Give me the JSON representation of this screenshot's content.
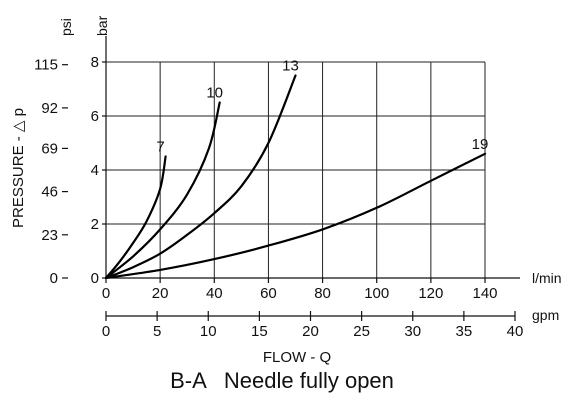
{
  "chart_data": {
    "type": "line",
    "caption": "B-A   Needle fully open",
    "xlabel": "FLOW - Q",
    "ylabel": "PRESSURE - △ p",
    "x_unit": "l/min",
    "x2_unit": "gpm",
    "y_unit": "bar",
    "y2_unit": "psi",
    "xlim": [
      0,
      140
    ],
    "ylim": [
      0,
      8
    ],
    "x_ticks": [
      0,
      20,
      40,
      60,
      80,
      100,
      120,
      140
    ],
    "y_ticks": [
      0,
      2,
      4,
      6,
      8
    ],
    "x2_ticks": [
      0,
      5,
      10,
      15,
      20,
      25,
      30,
      35,
      40
    ],
    "x2_lim": [
      0,
      40
    ],
    "y2_ticks": [
      {
        "label": "0",
        "bar": 0
      },
      {
        "label": "23",
        "bar": 1.6
      },
      {
        "label": "46",
        "bar": 3.2
      },
      {
        "label": "69",
        "bar": 4.8
      },
      {
        "label": "92",
        "bar": 6.3
      },
      {
        "label": "115",
        "bar": 7.9
      }
    ],
    "grid": true,
    "series": [
      {
        "name": "7",
        "x": [
          0,
          5,
          10,
          15,
          20,
          22
        ],
        "y": [
          0,
          0.6,
          1.3,
          2.1,
          3.3,
          4.5
        ]
      },
      {
        "name": "10",
        "x": [
          0,
          10,
          20,
          30,
          38,
          42
        ],
        "y": [
          0,
          0.8,
          1.8,
          3.1,
          4.8,
          6.5
        ]
      },
      {
        "name": "13",
        "x": [
          0,
          10,
          20,
          30,
          40,
          50,
          60,
          70
        ],
        "y": [
          0,
          0.4,
          0.9,
          1.6,
          2.4,
          3.4,
          5.0,
          7.5
        ]
      },
      {
        "name": "19",
        "x": [
          0,
          20,
          40,
          60,
          80,
          100,
          120,
          140
        ],
        "y": [
          0,
          0.3,
          0.7,
          1.2,
          1.8,
          2.6,
          3.6,
          4.6
        ]
      }
    ]
  }
}
